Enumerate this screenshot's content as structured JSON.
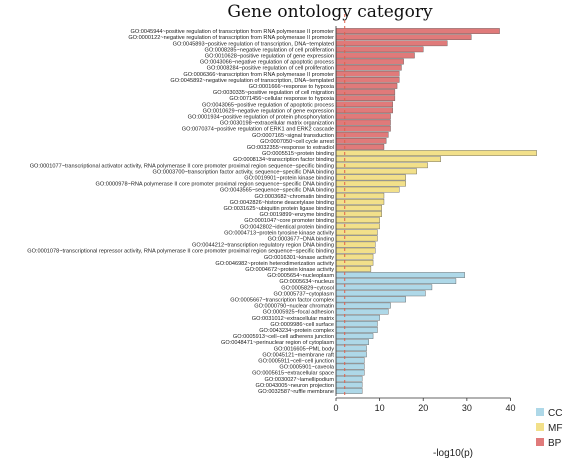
{
  "chart_data": {
    "type": "bar",
    "orientation": "horizontal",
    "title": "Gene ontology category",
    "xlabel": "-log10(p)",
    "ylabel": "",
    "xlim": [
      0,
      47
    ],
    "xticks": [
      0,
      10,
      20,
      30,
      40
    ],
    "reference_line": 2,
    "grid": false,
    "legend_position": "bottom-right",
    "groups": [
      {
        "name": "BP",
        "color": "#e07a7a",
        "categories": [
          "GO:0045944~positive regulation of transcription from RNA polymerase II promoter",
          "GO:0000122~negative regulation of transcription from RNA polymerase II promoter",
          "GO:0045893~positive regulation of transcription, DNA−templated",
          "GO:0008285~negative regulation of cell proliferation",
          "GO:0010628~positive regulation of gene expression",
          "GO:0043066~negative regulation of apoptotic process",
          "GO:0008284~positive regulation of cell proliferation",
          "GO:0006366~transcription from RNA polymerase II promoter",
          "GO:0045892~negative regulation of transcription, DNA−templated",
          "GO:0001666~response to hypoxia",
          "GO:0030335~positive regulation of cell migration",
          "GO:0071456~cellular response to hypoxia",
          "GO:0043065~positive regulation of apoptotic process",
          "GO:0010629~negative regulation of gene expression",
          "GO:0001934~positive regulation of protein phosphorylation",
          "GO:0030198~extracellular matrix organization",
          "GO:0070374~positive regulation of ERK1 and ERK2 cascade",
          "GO:0007165~signal transduction",
          "GO:0007050~cell cycle arrest",
          "GO:0032355~response to estradiol"
        ],
        "values": [
          37.5,
          31,
          25.5,
          20,
          18,
          15.5,
          15,
          14.5,
          14.5,
          14,
          13.5,
          13.5,
          13,
          13,
          12.5,
          12.5,
          12.5,
          12,
          11.5,
          11
        ]
      },
      {
        "name": "MF",
        "color": "#f2e08a",
        "categories": [
          "GO:0005515~protein binding",
          "GO:0008134~transcription factor binding",
          "GO:0001077~transcriptional activator activity, RNA polymerase II core promoter proximal region sequence−specific binding",
          "GO:0003700~transcription factor activity, sequence−specific DNA binding",
          "GO:0019901~protein kinase binding",
          "GO:0000978~RNA polymerase II core promoter proximal region sequence−specific DNA binding",
          "GO:0043565~sequence−specific DNA binding",
          "GO:0003682~chromatin binding",
          "GO:0042826~histone deacetylase binding",
          "GO:0031625~ubiquitin protein ligase binding",
          "GO:0019899~enzyme binding",
          "GO:0001047~core promoter binding",
          "GO:0042802~identical protein binding",
          "GO:0004713~protein tyrosine kinase activity",
          "GO:0003677~DNA binding",
          "GO:0044212~transcription regulatory region DNA binding",
          "GO:0001078~transcriptional repressor activity, RNA polymerase II core promoter proximal region sequence−specific binding",
          "GO:0016301~kinase activity",
          "GO:0046982~protein heterodimerization activity",
          "GO:0004672~protein kinase activity"
        ],
        "values": [
          46,
          24,
          21,
          18.5,
          16,
          16,
          14.5,
          11,
          11,
          10.5,
          10.5,
          10,
          10,
          9.5,
          9.5,
          9,
          9,
          8.5,
          8.5,
          8
        ]
      },
      {
        "name": "CC",
        "color": "#aed8e8",
        "categories": [
          "GO:0005654~nucleoplasm",
          "GO:0005634~nucleus",
          "GO:0005829~cytosol",
          "GO:0005737~cytoplasm",
          "GO:0005667~transcription factor complex",
          "GO:0000790~nuclear chromatin",
          "GO:0005925~focal adhesion",
          "GO:0031012~extracellular matrix",
          "GO:0009986~cell surface",
          "GO:0043234~protein complex",
          "GO:0005913~cell−cell adherens junction",
          "GO:0048471~perinuclear region of cytoplasm",
          "GO:0016605~PML body",
          "GO:0045121~membrane raft",
          "GO:0005911~cell−cell junction",
          "GO:0005901~caveola",
          "GO:0005615~extracellular space",
          "GO:0030027~lamellipodium",
          "GO:0043005~neuron projection",
          "GO:0032587~ruffle membrane"
        ],
        "values": [
          29.5,
          27.5,
          22,
          20.5,
          16,
          12.5,
          12,
          10,
          9.5,
          9.5,
          8.5,
          7.5,
          7,
          7,
          6.5,
          6.5,
          6.5,
          6,
          6,
          6
        ]
      }
    ],
    "legend": [
      "CC",
      "MF",
      "BP"
    ]
  }
}
